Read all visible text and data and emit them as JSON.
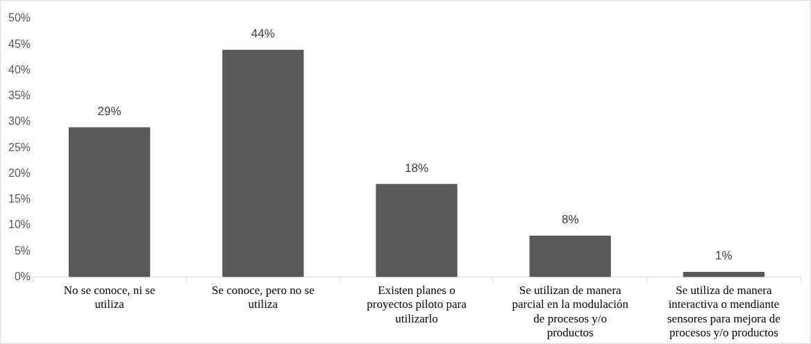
{
  "chart_data": {
    "type": "bar",
    "categories": [
      "No se conoce, ni se utiliza",
      "Se conoce, pero no se utiliza",
      "Existen planes o proyectos piloto para utilizarlo",
      "Se utilizan de manera parcial en la modulación de procesos y/o productos",
      "Se utiliza de manera interactiva o mendiante sensores para mejora de procesos y/o productos"
    ],
    "values": [
      29,
      44,
      18,
      8,
      1
    ],
    "value_labels": [
      "29%",
      "44%",
      "18%",
      "8%",
      "1%"
    ],
    "color": "#595959",
    "ylim": [
      0,
      50
    ],
    "yticks": [
      {
        "value": 0,
        "label": "0%"
      },
      {
        "value": 5,
        "label": "5%"
      },
      {
        "value": 10,
        "label": "10%"
      },
      {
        "value": 15,
        "label": "15%"
      },
      {
        "value": 20,
        "label": "20%"
      },
      {
        "value": 25,
        "label": "25%"
      },
      {
        "value": 30,
        "label": "30%"
      },
      {
        "value": 35,
        "label": "35%"
      },
      {
        "value": 40,
        "label": "40%"
      },
      {
        "value": 45,
        "label": "45%"
      },
      {
        "value": 50,
        "label": "50%"
      }
    ],
    "grid": false,
    "legend": false
  }
}
